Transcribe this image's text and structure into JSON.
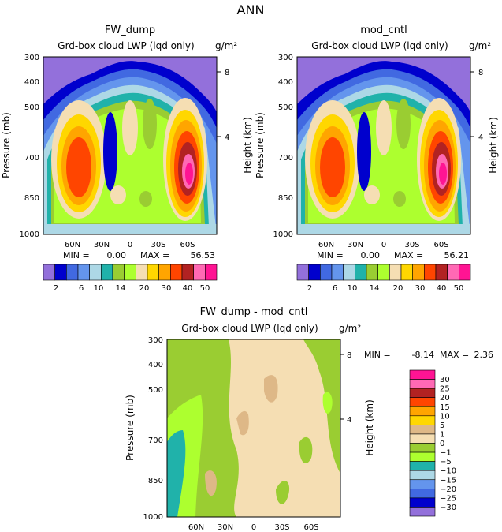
{
  "page": {
    "title": "ANN"
  },
  "chart_data": [
    {
      "type": "heatmap",
      "panel_title": "FW_dump",
      "subtitle": "Grd-box cloud LWP (lqd only)",
      "units": "g/m²",
      "ylabel": "Pressure (mb)",
      "ylabel_right": "Height (km)",
      "yticks": [
        "300",
        "400",
        "500",
        "700",
        "850",
        "1000"
      ],
      "yticks_right": [
        "8",
        "4"
      ],
      "xticks": [
        "60N",
        "30N",
        "0",
        "30S",
        "60S"
      ],
      "min_label": "MIN =",
      "min_value": "0.00",
      "max_label": "MAX =",
      "max_value": "56.53",
      "colorbar_labels": [
        "2",
        "6",
        "10",
        "14",
        "20",
        "30",
        "40",
        "50"
      ]
    },
    {
      "type": "heatmap",
      "panel_title": "mod_cntl",
      "subtitle": "Grd-box cloud LWP (lqd only)",
      "units": "g/m²",
      "ylabel": "Pressure (mb)",
      "ylabel_right": "Height (km)",
      "yticks": [
        "300",
        "400",
        "500",
        "700",
        "850",
        "1000"
      ],
      "yticks_right": [
        "8",
        "4"
      ],
      "xticks": [
        "60N",
        "30N",
        "0",
        "30S",
        "60S"
      ],
      "min_label": "MIN =",
      "min_value": "0.00",
      "max_label": "MAX =",
      "max_value": "56.21",
      "colorbar_labels": [
        "2",
        "6",
        "10",
        "14",
        "20",
        "30",
        "40",
        "50"
      ]
    },
    {
      "type": "heatmap",
      "panel_title": "FW_dump - mod_cntl",
      "subtitle": "Grd-box cloud LWP (lqd only)",
      "units": "g/m²",
      "ylabel": "Pressure (mb)",
      "ylabel_right": "Height (km)",
      "yticks": [
        "300",
        "400",
        "500",
        "700",
        "850",
        "1000"
      ],
      "yticks_right": [
        "8",
        "4"
      ],
      "xticks": [
        "60N",
        "30N",
        "0",
        "30S",
        "60S"
      ],
      "min_label": "MIN =",
      "min_value": "-8.14",
      "max_label": "MAX =",
      "max_value": "2.36",
      "colorbar_labels": [
        "30",
        "25",
        "20",
        "15",
        "10",
        "5",
        "1",
        "0",
        "−1",
        "−5",
        "−10",
        "−15",
        "−20",
        "−25",
        "−30"
      ]
    }
  ],
  "colors": {
    "abs_scale": [
      "#9370DB",
      "#0000CD",
      "#4169E1",
      "#6495ED",
      "#ADD8E6",
      "#20B2AA",
      "#9ACD32",
      "#ADFF2F",
      "#F5DEB3",
      "#FFD700",
      "#FFA500",
      "#FF4500",
      "#B22222",
      "#FF69B4",
      "#FF1493"
    ],
    "diff_scale": [
      "#FF1493",
      "#FF69B4",
      "#B22222",
      "#FF4500",
      "#FFA500",
      "#FFD700",
      "#DEB887",
      "#F5DEB3",
      "#9ACD32",
      "#ADFF2F",
      "#20B2AA",
      "#ADD8E6",
      "#6495ED",
      "#4169E1",
      "#0000CD",
      "#9370DB"
    ]
  }
}
